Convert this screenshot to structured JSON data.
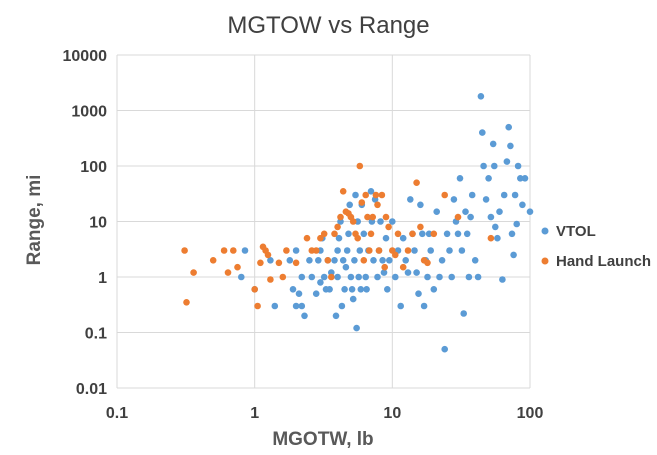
{
  "chart_data": {
    "type": "scatter",
    "title": "MGTOW vs Range",
    "xlabel": "MGOTW, lb",
    "ylabel": "Range, mi",
    "x_scale": "log",
    "y_scale": "log",
    "xlim": [
      0.1,
      100
    ],
    "ylim": [
      0.01,
      10000
    ],
    "x_ticks": [
      "0.1",
      "1",
      "10",
      "100"
    ],
    "y_ticks": [
      "0.01",
      "0.1",
      "1",
      "10",
      "100",
      "1000",
      "10000"
    ],
    "grid": true,
    "legend_position": "right",
    "series": [
      {
        "name": "VTOL",
        "color": "#5B9BD5",
        "points": [
          [
            0.8,
            1.0
          ],
          [
            0.85,
            3.0
          ],
          [
            1.0,
            0.6
          ],
          [
            1.3,
            2.0
          ],
          [
            1.4,
            0.3
          ],
          [
            1.8,
            2.0
          ],
          [
            1.9,
            0.6
          ],
          [
            2.0,
            0.3
          ],
          [
            2.0,
            3.0
          ],
          [
            2.1,
            0.5
          ],
          [
            2.2,
            0.3
          ],
          [
            2.2,
            1.0
          ],
          [
            2.3,
            0.2
          ],
          [
            2.5,
            2.0
          ],
          [
            2.6,
            1.0
          ],
          [
            2.8,
            0.5
          ],
          [
            2.9,
            2.0
          ],
          [
            3.0,
            0.8
          ],
          [
            3.0,
            3.0
          ],
          [
            3.1,
            5.0
          ],
          [
            3.2,
            1.0
          ],
          [
            3.3,
            0.6
          ],
          [
            3.4,
            2.0
          ],
          [
            3.5,
            0.6
          ],
          [
            3.6,
            1.2
          ],
          [
            3.8,
            2.0
          ],
          [
            3.9,
            0.2
          ],
          [
            4.0,
            1.0
          ],
          [
            4.0,
            3.0
          ],
          [
            4.1,
            5.0
          ],
          [
            4.2,
            10.0
          ],
          [
            4.3,
            0.3
          ],
          [
            4.4,
            2.0
          ],
          [
            4.5,
            0.6
          ],
          [
            4.6,
            1.5
          ],
          [
            4.7,
            3.0
          ],
          [
            4.8,
            6.0
          ],
          [
            4.9,
            20.0
          ],
          [
            5.0,
            1.0
          ],
          [
            5.1,
            0.6
          ],
          [
            5.2,
            0.4
          ],
          [
            5.3,
            2.0
          ],
          [
            5.4,
            30.0
          ],
          [
            5.5,
            0.12
          ],
          [
            5.6,
            10.0
          ],
          [
            5.7,
            1.0
          ],
          [
            5.8,
            3.0
          ],
          [
            5.9,
            0.6
          ],
          [
            6.0,
            20.0
          ],
          [
            6.2,
            6.0
          ],
          [
            6.4,
            1.0
          ],
          [
            6.5,
            0.6
          ],
          [
            6.7,
            3.0
          ],
          [
            7.0,
            35.0
          ],
          [
            7.1,
            10.0
          ],
          [
            7.3,
            2.0
          ],
          [
            7.5,
            25.0
          ],
          [
            7.8,
            1.0
          ],
          [
            8.0,
            3.0
          ],
          [
            8.2,
            10.0
          ],
          [
            8.5,
            2.0
          ],
          [
            8.7,
            1.2
          ],
          [
            9.0,
            5.0
          ],
          [
            9.2,
            0.6
          ],
          [
            9.5,
            2.0
          ],
          [
            10.0,
            10.0
          ],
          [
            10.5,
            1.0
          ],
          [
            11.0,
            3.0
          ],
          [
            11.5,
            0.3
          ],
          [
            12.0,
            5.0
          ],
          [
            12.5,
            2.0
          ],
          [
            13.0,
            1.2
          ],
          [
            13.5,
            25.0
          ],
          [
            14.0,
            6.0
          ],
          [
            14.5,
            3.0
          ],
          [
            15.0,
            1.2
          ],
          [
            15.5,
            0.5
          ],
          [
            16.0,
            20.0
          ],
          [
            16.5,
            6.0
          ],
          [
            17.0,
            0.3
          ],
          [
            17.5,
            2.0
          ],
          [
            18.0,
            1.0
          ],
          [
            18.5,
            6.0
          ],
          [
            19.0,
            3.0
          ],
          [
            20.0,
            0.6
          ],
          [
            21.0,
            15.0
          ],
          [
            22.0,
            1.0
          ],
          [
            23.0,
            2.0
          ],
          [
            24.0,
            0.05
          ],
          [
            25.0,
            6.0
          ],
          [
            26.0,
            3.0
          ],
          [
            27.0,
            1.0
          ],
          [
            28.0,
            25.0
          ],
          [
            29.0,
            10.0
          ],
          [
            30.0,
            6.0
          ],
          [
            31.0,
            60.0
          ],
          [
            32.0,
            3.0
          ],
          [
            33.0,
            0.22
          ],
          [
            34.0,
            15.0
          ],
          [
            35.0,
            6.0
          ],
          [
            36.0,
            1.0
          ],
          [
            37.0,
            12.0
          ],
          [
            38.0,
            30.0
          ],
          [
            40.0,
            2.0
          ],
          [
            42.0,
            1.0
          ],
          [
            44.0,
            1800.0
          ],
          [
            45.0,
            400.0
          ],
          [
            46.0,
            100.0
          ],
          [
            48.0,
            25.0
          ],
          [
            50.0,
            60.0
          ],
          [
            52.0,
            12.0
          ],
          [
            54.0,
            250.0
          ],
          [
            55.0,
            100.0
          ],
          [
            56.0,
            8.0
          ],
          [
            58.0,
            5.0
          ],
          [
            60.0,
            15.0
          ],
          [
            63.0,
            0.9
          ],
          [
            65.0,
            30.0
          ],
          [
            68.0,
            120.0
          ],
          [
            70.0,
            500.0
          ],
          [
            72.0,
            230.0
          ],
          [
            74.0,
            6.0
          ],
          [
            76.0,
            2.5
          ],
          [
            78.0,
            30.0
          ],
          [
            80.0,
            9.0
          ],
          [
            82.0,
            100.0
          ],
          [
            85.0,
            60.0
          ],
          [
            88.0,
            20.0
          ],
          [
            92.0,
            60.0
          ],
          [
            100.0,
            15.0
          ]
        ]
      },
      {
        "name": "Hand Launch",
        "color": "#ED7D31",
        "points": [
          [
            0.31,
            3.0
          ],
          [
            0.32,
            0.35
          ],
          [
            0.36,
            1.2
          ],
          [
            0.5,
            2.0
          ],
          [
            0.6,
            3.0
          ],
          [
            0.64,
            1.2
          ],
          [
            0.7,
            3.0
          ],
          [
            0.75,
            1.5
          ],
          [
            1.0,
            0.6
          ],
          [
            1.05,
            0.3
          ],
          [
            1.1,
            1.8
          ],
          [
            1.15,
            3.5
          ],
          [
            1.2,
            3.0
          ],
          [
            1.25,
            2.5
          ],
          [
            1.3,
            0.9
          ],
          [
            1.5,
            1.8
          ],
          [
            1.6,
            1.0
          ],
          [
            1.7,
            3.0
          ],
          [
            2.0,
            1.8
          ],
          [
            2.4,
            5.0
          ],
          [
            2.6,
            3.0
          ],
          [
            2.8,
            3.0
          ],
          [
            3.0,
            5.0
          ],
          [
            3.2,
            6.0
          ],
          [
            3.4,
            2.0
          ],
          [
            3.6,
            1.0
          ],
          [
            3.8,
            6.0
          ],
          [
            4.0,
            8.0
          ],
          [
            4.2,
            12.0
          ],
          [
            4.4,
            35.0
          ],
          [
            4.6,
            15.0
          ],
          [
            4.8,
            14.0
          ],
          [
            5.0,
            12.0
          ],
          [
            5.2,
            10.0
          ],
          [
            5.4,
            6.0
          ],
          [
            5.6,
            5.0
          ],
          [
            5.8,
            100.0
          ],
          [
            6.0,
            22.0
          ],
          [
            6.2,
            2.0
          ],
          [
            6.4,
            30.0
          ],
          [
            6.6,
            12.0
          ],
          [
            6.8,
            3.0
          ],
          [
            7.0,
            6.0
          ],
          [
            7.2,
            12.0
          ],
          [
            7.6,
            30.0
          ],
          [
            7.8,
            20.0
          ],
          [
            8.0,
            3.0
          ],
          [
            8.4,
            30.0
          ],
          [
            8.8,
            1.5
          ],
          [
            9.0,
            12.0
          ],
          [
            9.4,
            8.0
          ],
          [
            10.0,
            3.0
          ],
          [
            10.5,
            2.5
          ],
          [
            11.0,
            6.0
          ],
          [
            12.0,
            1.5
          ],
          [
            13.0,
            3.0
          ],
          [
            14.0,
            6.0
          ],
          [
            15.0,
            50.0
          ],
          [
            16.0,
            8.0
          ],
          [
            17.0,
            2.0
          ],
          [
            18.0,
            1.8
          ],
          [
            20.0,
            6.0
          ],
          [
            24.0,
            30.0
          ],
          [
            30.0,
            12.0
          ],
          [
            52.0,
            5.0
          ]
        ]
      }
    ]
  }
}
